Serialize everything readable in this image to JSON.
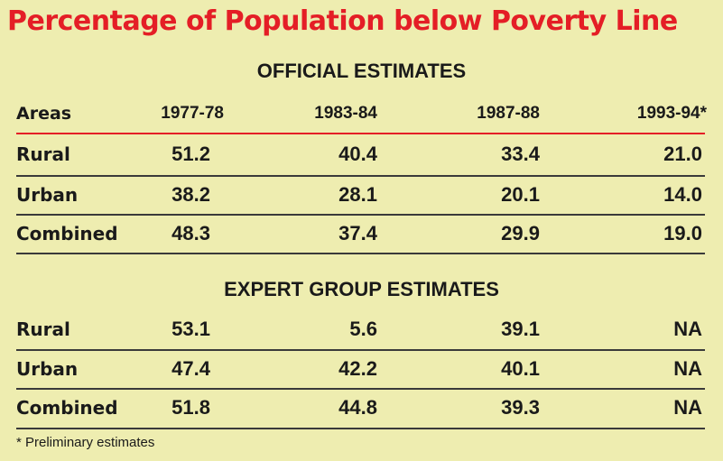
{
  "chart_data": {
    "type": "table",
    "title": "Percentage of Population below Poverty Line",
    "columns": [
      "Areas",
      "1977-78",
      "1983-84",
      "1987-88",
      "1993-94*"
    ],
    "sections": [
      {
        "name": "OFFICIAL ESTIMATES",
        "rows": [
          {
            "area": "Rural",
            "values": [
              "51.2",
              "40.4",
              "33.4",
              "21.0"
            ]
          },
          {
            "area": "Urban",
            "values": [
              "38.2",
              "28.1",
              "20.1",
              "14.0"
            ]
          },
          {
            "area": "Combined",
            "values": [
              "48.3",
              "37.4",
              "29.9",
              "19.0"
            ]
          }
        ]
      },
      {
        "name": "EXPERT GROUP ESTIMATES",
        "rows": [
          {
            "area": "Rural",
            "values": [
              "53.1",
              "5.6",
              "39.1",
              "NA"
            ]
          },
          {
            "area": "Urban",
            "values": [
              "47.4",
              "42.2",
              "40.1",
              "NA"
            ]
          },
          {
            "area": "Combined",
            "values": [
              "51.8",
              "44.8",
              "39.3",
              "NA"
            ]
          }
        ]
      }
    ],
    "footnote": "* Preliminary estimates",
    "colors": {
      "title": "#e41e26",
      "background": "#eeedb0",
      "rule": "#e41e26"
    }
  }
}
